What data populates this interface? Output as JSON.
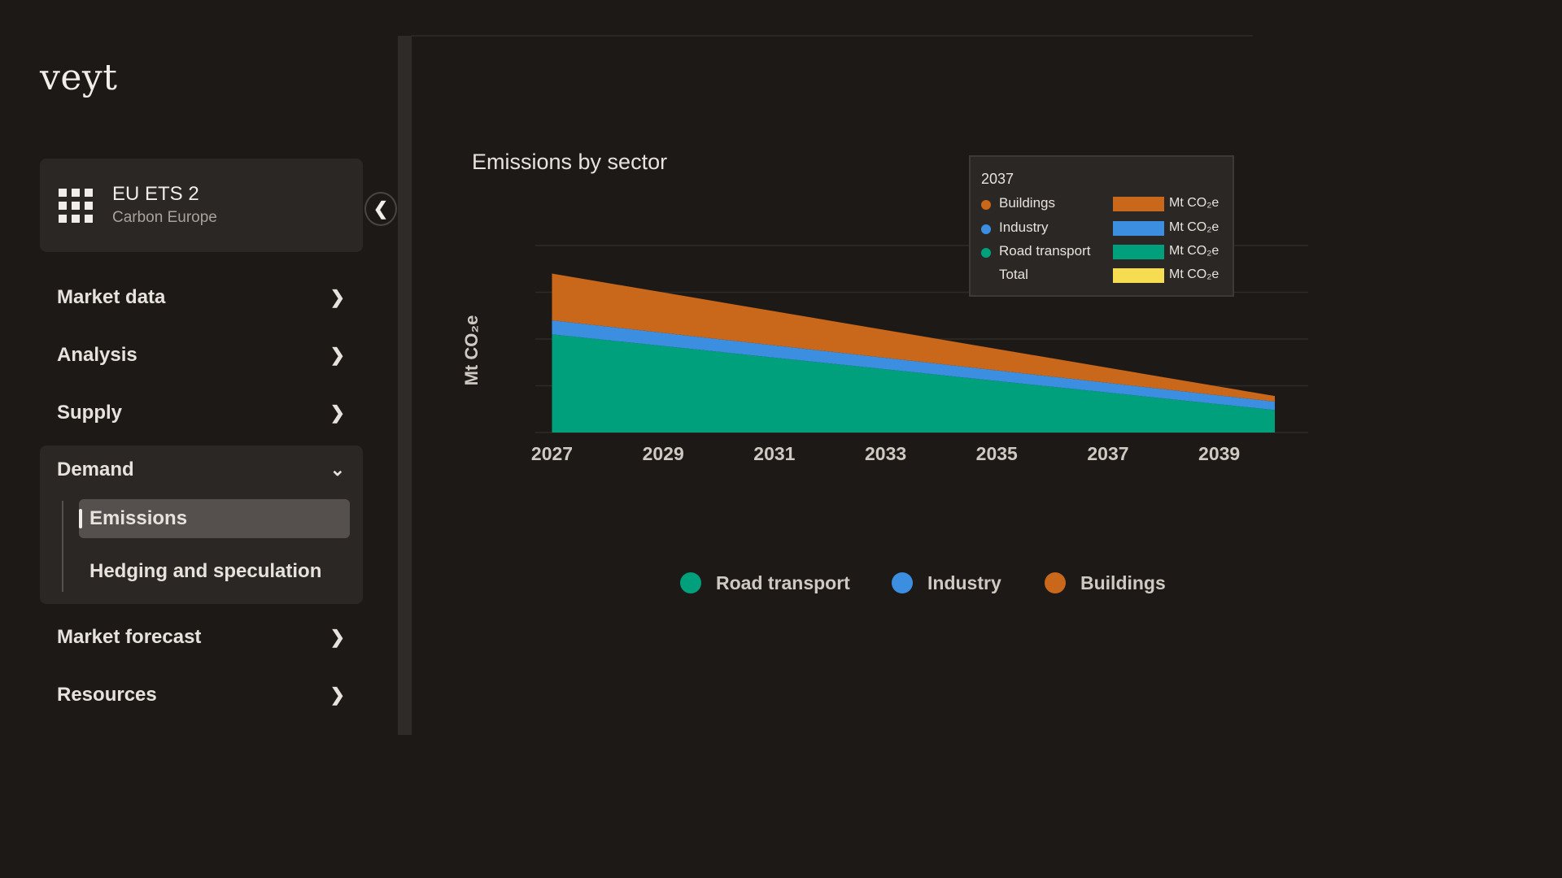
{
  "brand": {
    "logo_text": "veyt"
  },
  "product": {
    "name": "EU ETS 2",
    "subtitle": "Carbon Europe",
    "icon": "apps-grid-icon"
  },
  "nav": {
    "collapse_icon": "chevron-left-icon",
    "items": [
      {
        "label": "Market data",
        "icon": "chevron-right-icon"
      },
      {
        "label": "Analysis",
        "icon": "chevron-right-icon"
      },
      {
        "label": "Supply",
        "icon": "chevron-right-icon"
      },
      {
        "label": "Demand",
        "icon": "chevron-down-icon",
        "expanded": true,
        "children": [
          {
            "label": "Emissions",
            "active": true
          },
          {
            "label": "Hedging and speculation",
            "active": false
          }
        ]
      },
      {
        "label": "Market forecast",
        "icon": "chevron-right-icon"
      },
      {
        "label": "Resources",
        "icon": "chevron-right-icon"
      }
    ]
  },
  "chart_data": {
    "type": "area",
    "stacked": true,
    "title": "Emissions by sector",
    "ylabel": "Mt CO₂e",
    "x_ticks": [
      "2027",
      "2029",
      "2031",
      "2033",
      "2035",
      "2037",
      "2039"
    ],
    "x": [
      2027,
      2040
    ],
    "grid": true,
    "series": [
      {
        "name": "Road transport",
        "color": "#00a07d",
        "values": [
          210,
          48
        ]
      },
      {
        "name": "Industry",
        "color": "#3b8ee0",
        "values": [
          30,
          18
        ]
      },
      {
        "name": "Buildings",
        "color": "#c9671a",
        "values": [
          100,
          12
        ]
      }
    ],
    "ylim": [
      0,
      400
    ],
    "legend": "bottom-center"
  },
  "tooltip": {
    "year": "2037",
    "rows": [
      {
        "label": "Buildings",
        "color": "#c9671a",
        "dot": true,
        "unit": "Mt CO₂e"
      },
      {
        "label": "Industry",
        "color": "#3b8ee0",
        "dot": true,
        "unit": "Mt CO₂e"
      },
      {
        "label": "Road transport",
        "color": "#00a07d",
        "dot": true,
        "unit": "Mt CO₂e"
      },
      {
        "label": "Total",
        "color": "#f5dc50",
        "dot": false,
        "unit": "Mt CO₂e"
      }
    ]
  },
  "legend": [
    {
      "label": "Road transport",
      "color": "#00a07d"
    },
    {
      "label": "Industry",
      "color": "#3b8ee0"
    },
    {
      "label": "Buildings",
      "color": "#c9671a"
    }
  ]
}
